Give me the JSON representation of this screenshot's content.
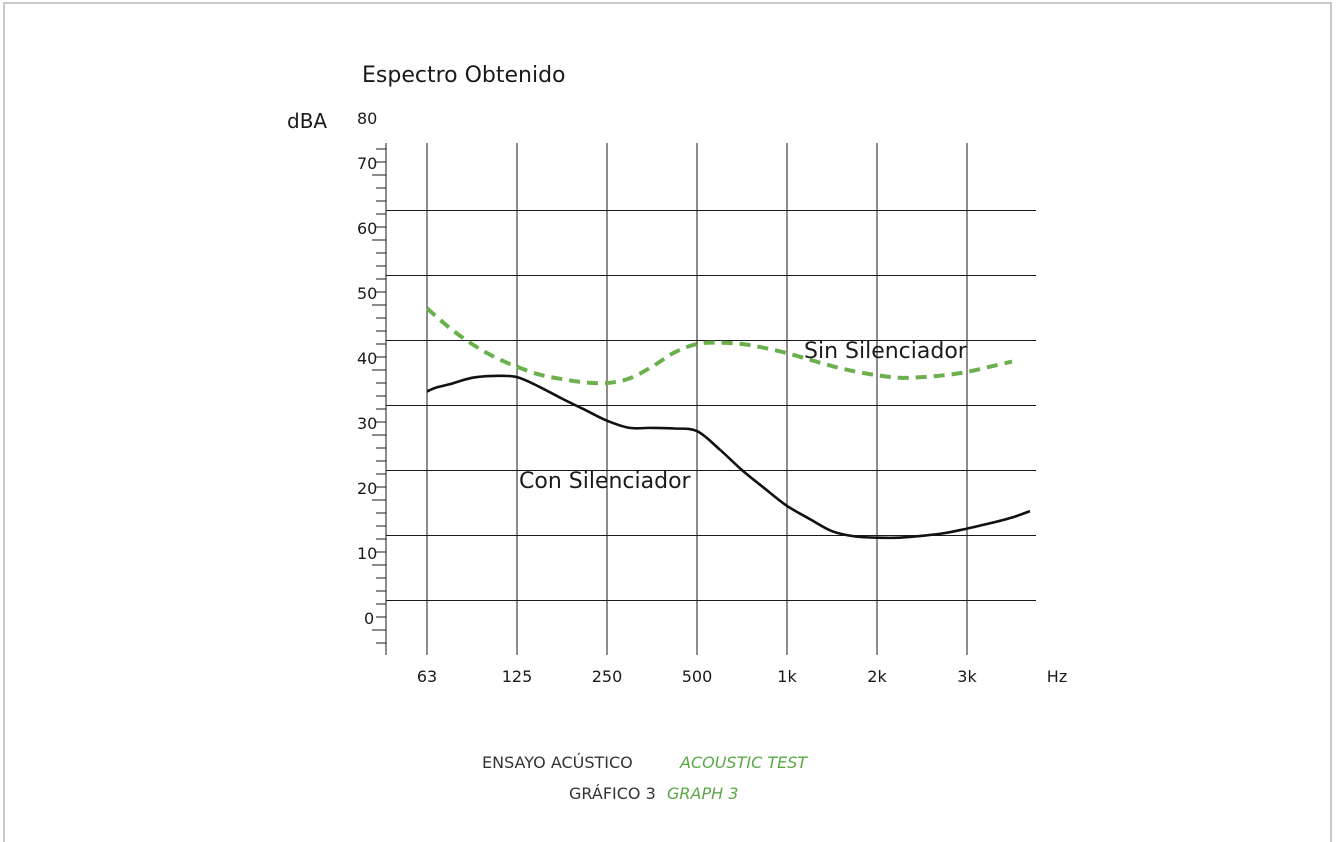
{
  "colors": {
    "frame": "#c8c8c8",
    "grid": "#1a1a1a",
    "green": "#6ab04c",
    "black": "#111111",
    "caption_en": "#5aa845"
  },
  "caption": {
    "line1_es": "ENSAYO ACÚSTICO",
    "line1_en": "ACOUSTIC TEST",
    "line2_es": "GRÁFICO 3",
    "line2_en": "GRAPH 3"
  },
  "chart_data": {
    "type": "line",
    "title": "Espectro Obtenido",
    "ylabel": "dBA",
    "xlabel": "Hz",
    "ylim": [
      -4,
      80
    ],
    "yticks": [
      0,
      10,
      20,
      30,
      40,
      50,
      60,
      70,
      80
    ],
    "categories": [
      "63",
      "125",
      "250",
      "500",
      "1k",
      "2k",
      "3k",
      "Hz"
    ],
    "grid": true,
    "series": [
      {
        "name": "Sin Silenciador",
        "style": "dashed",
        "color": "#6ab04c",
        "x": [
          0,
          0.25,
          0.5,
          0.75,
          1,
          1.25,
          1.5,
          1.75,
          2,
          2.25,
          2.5,
          2.75,
          3,
          3.25,
          3.5,
          3.75,
          4,
          4.25,
          4.5,
          4.75,
          5,
          5.25,
          5.5,
          5.75,
          6,
          6.25,
          6.5
        ],
        "values": [
          49.5,
          46.5,
          44,
          42,
          40.5,
          39.3,
          38.6,
          38.1,
          38,
          38.7,
          40.5,
          42.7,
          44,
          44.2,
          44,
          43.4,
          42.6,
          41.6,
          40.6,
          39.8,
          39.2,
          38.8,
          38.9,
          39.2,
          39.7,
          40.5,
          41.3
        ]
      },
      {
        "name": "Con Silenciador",
        "style": "solid",
        "color": "#111111",
        "x": [
          0,
          0.1,
          0.25,
          0.5,
          0.75,
          1,
          1.25,
          1.5,
          1.75,
          2,
          2.25,
          2.5,
          2.75,
          3,
          3.25,
          3.5,
          3.75,
          4,
          4.25,
          4.5,
          4.75,
          5,
          5.25,
          5.5,
          5.75,
          6,
          6.25,
          6.5,
          6.7
        ],
        "values": [
          36.7,
          37.3,
          37.8,
          38.8,
          39.1,
          38.9,
          37.4,
          35.6,
          33.9,
          32.2,
          31.1,
          31.1,
          31,
          30.6,
          27.8,
          24.6,
          21.8,
          19.1,
          17.1,
          15.2,
          14.4,
          14.2,
          14.2,
          14.5,
          14.9,
          15.6,
          16.4,
          17.3,
          18.3
        ]
      }
    ],
    "annotations": [
      "Sin Silenciador",
      "Con Silenciador"
    ]
  }
}
